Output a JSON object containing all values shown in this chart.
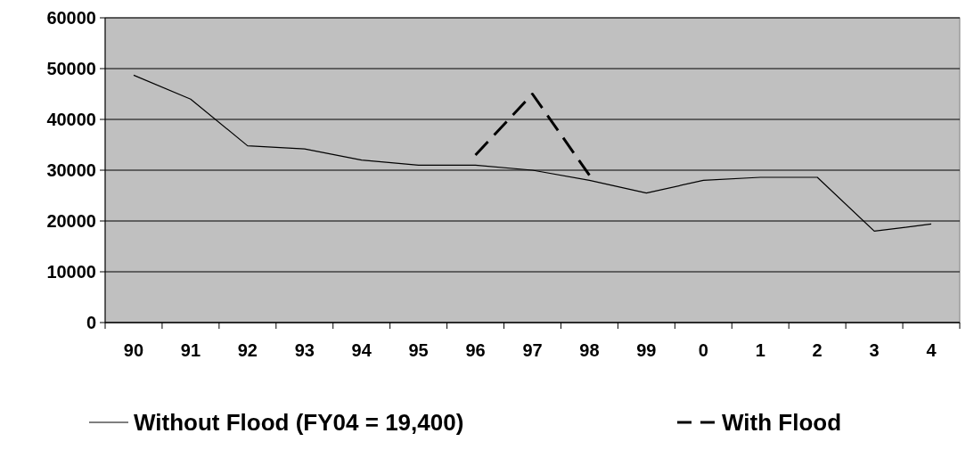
{
  "chart_data": {
    "type": "line",
    "categories": [
      "90",
      "91",
      "92",
      "93",
      "94",
      "95",
      "96",
      "97",
      "98",
      "99",
      "0",
      "1",
      "2",
      "3",
      "4"
    ],
    "series": [
      {
        "name": "Without Flood (FY04 = 19,400)",
        "color": "#000000",
        "line_style": "solid",
        "values": [
          48700,
          44000,
          34800,
          34200,
          32000,
          31000,
          31000,
          30000,
          28000,
          25500,
          28000,
          28600,
          28600,
          18000,
          19400
        ]
      },
      {
        "name": "With Flood",
        "color": "#000000",
        "line_style": "dashed",
        "values": [
          null,
          null,
          null,
          null,
          null,
          null,
          33000,
          45000,
          29000,
          null,
          null,
          null,
          null,
          null,
          null
        ]
      }
    ],
    "ylim": [
      0,
      60000
    ],
    "yticks": [
      0,
      10000,
      20000,
      30000,
      40000,
      50000,
      60000
    ],
    "grid": "y",
    "legend": "bottom"
  }
}
